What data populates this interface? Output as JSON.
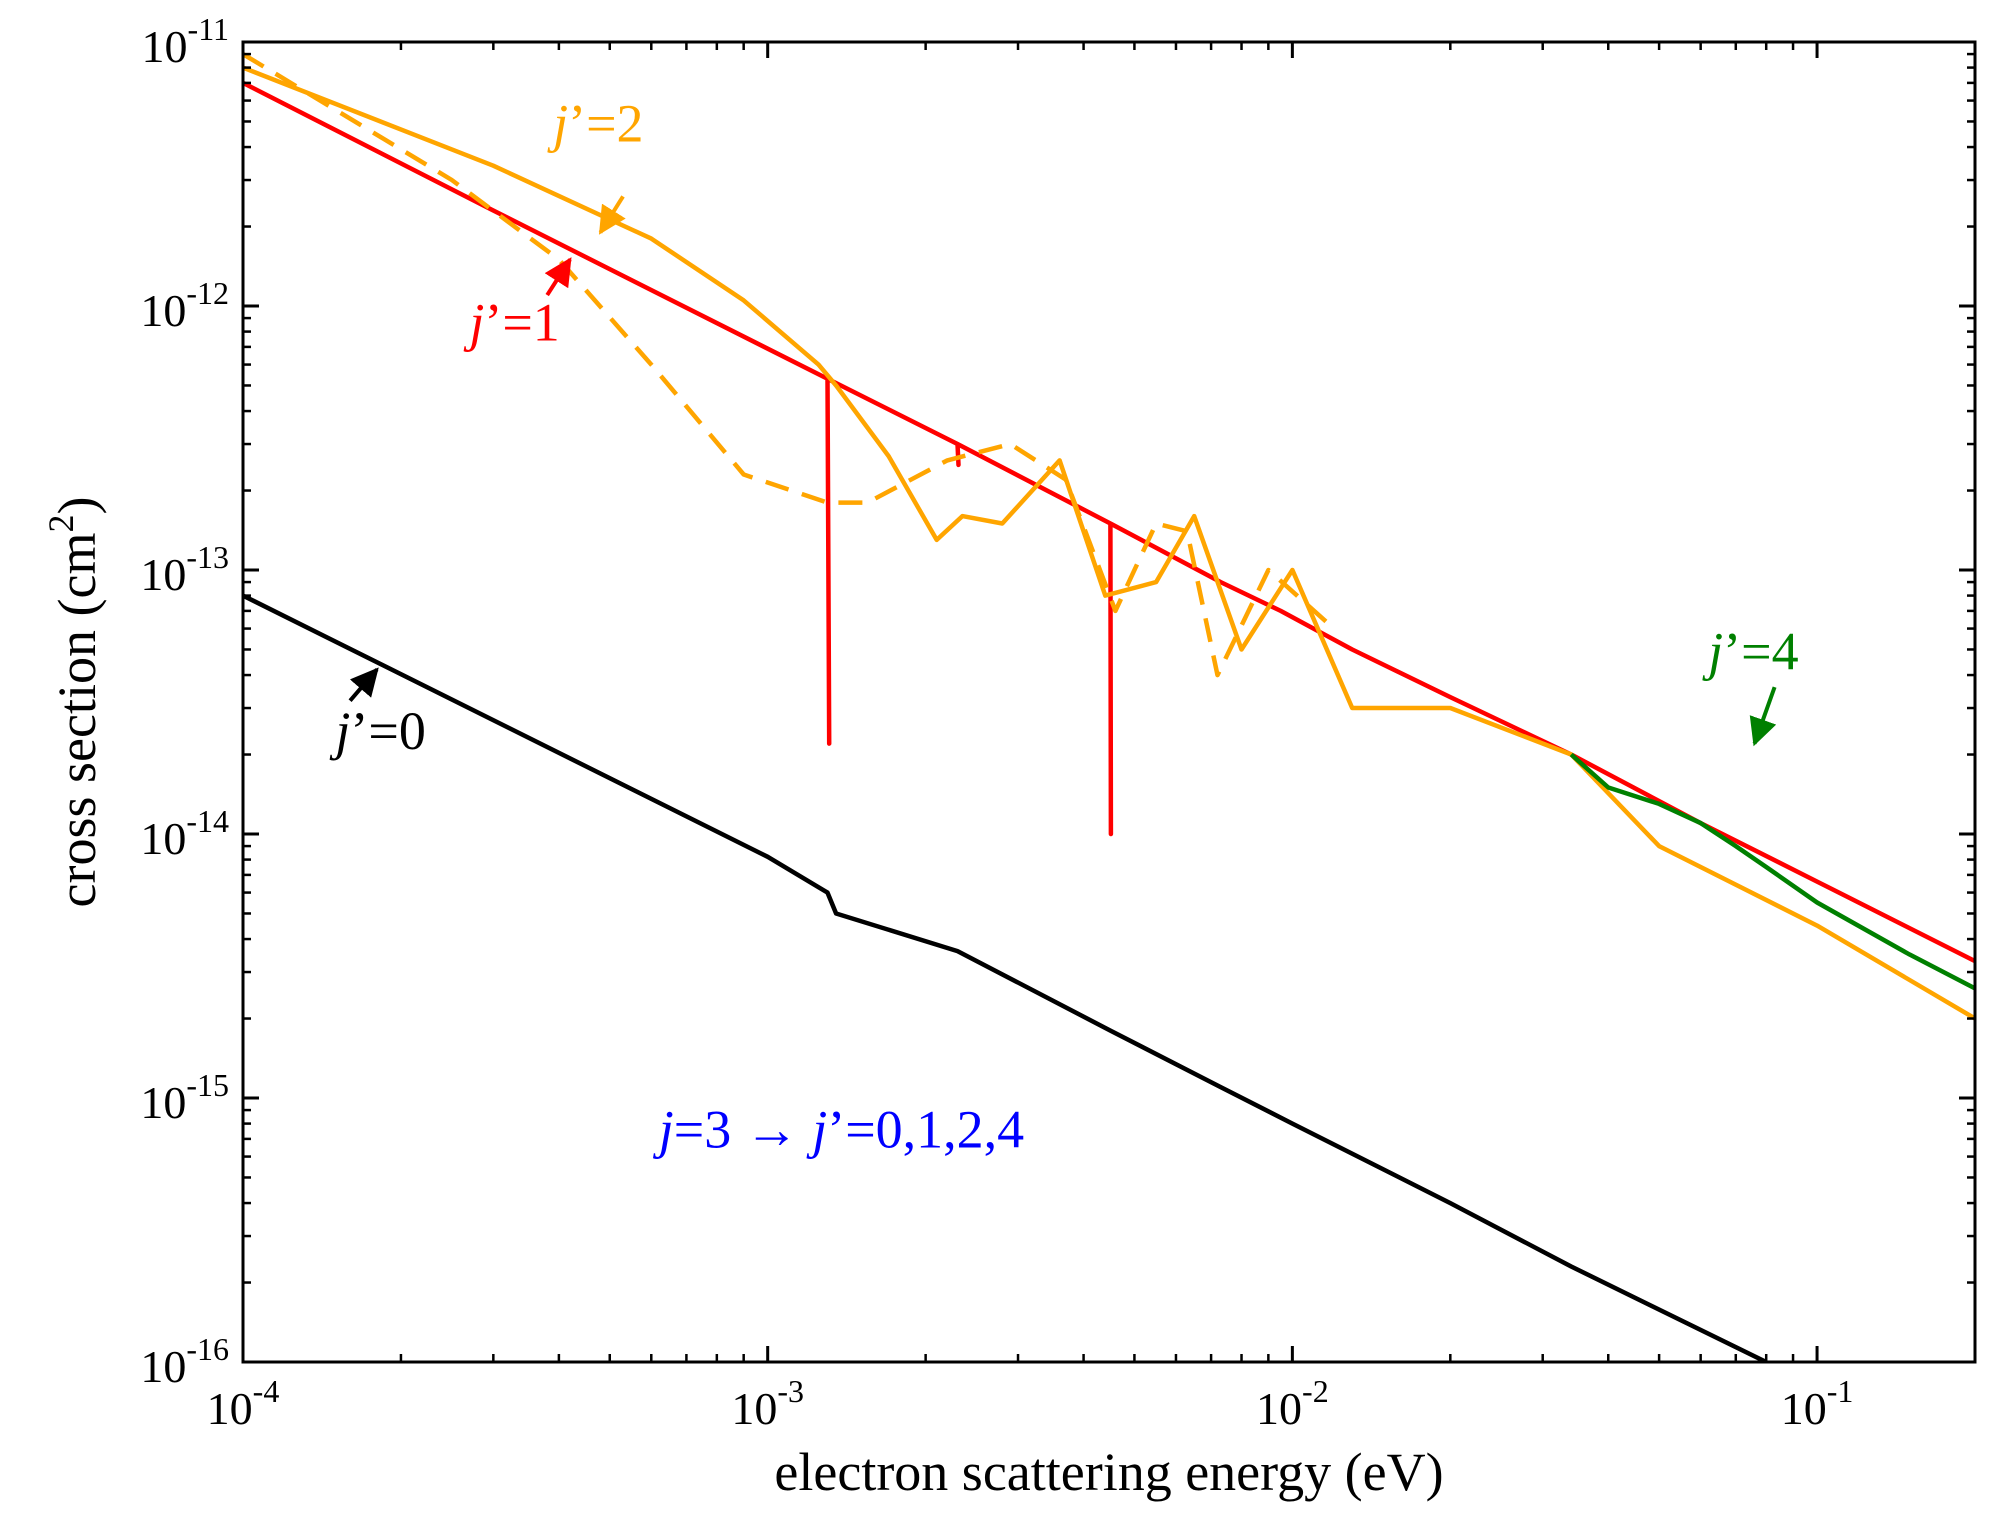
{
  "chart_data": {
    "type": "line",
    "title": "",
    "xlabel": "electron scattering energy (eV)",
    "ylabel_prefix": "cross section (cm",
    "ylabel_sup": "2",
    "ylabel_suffix": ")",
    "xscale": "log",
    "yscale": "log",
    "xlim": [
      0.0001,
      0.2
    ],
    "ylim": [
      1e-16,
      1e-11
    ],
    "x_ticks": [
      {
        "value": 0.0001,
        "base": "10",
        "exp": "-4"
      },
      {
        "value": 0.001,
        "base": "10",
        "exp": "-3"
      },
      {
        "value": 0.01,
        "base": "10",
        "exp": "-2"
      },
      {
        "value": 0.1,
        "base": "10",
        "exp": "-1"
      }
    ],
    "y_ticks": [
      {
        "value": 1e-16,
        "base": "10",
        "exp": "-16"
      },
      {
        "value": 1e-15,
        "base": "10",
        "exp": "-15"
      },
      {
        "value": 1e-14,
        "base": "10",
        "exp": "-14"
      },
      {
        "value": 1e-13,
        "base": "10",
        "exp": "-13"
      },
      {
        "value": 1e-12,
        "base": "10",
        "exp": "-12"
      },
      {
        "value": 1e-11,
        "base": "10",
        "exp": "-11"
      }
    ],
    "grid": false,
    "series": [
      {
        "name": "j'=1 (solid)",
        "color": "#ff0000",
        "dash": "solid",
        "x": [
          0.0001,
          0.0003,
          0.0013,
          0.00131,
          0.0013,
          0.0023,
          0.00231,
          0.0023,
          0.0045,
          0.00451,
          0.0045,
          0.0073,
          0.0095,
          0.013,
          0.02,
          0.034,
          0.06,
          0.1,
          0.2
        ],
        "y": [
          7e-12,
          2.3e-12,
          5.3e-13,
          2.2e-14,
          5.3e-13,
          3e-13,
          2.5e-13,
          3e-13,
          1.5e-13,
          1e-14,
          1.5e-13,
          9e-14,
          7e-14,
          5e-14,
          3.3e-14,
          2e-14,
          1.1e-14,
          6.6e-15,
          3.3e-15
        ]
      },
      {
        "name": "j'=2 (solid)",
        "color": "#ffa500",
        "dash": "solid",
        "x": [
          0.0001,
          0.0003,
          0.0006,
          0.0009,
          0.00125,
          0.00135,
          0.0017,
          0.0021,
          0.00235,
          0.0028,
          0.0036,
          0.0044,
          0.0055,
          0.0065,
          0.008,
          0.01,
          0.013,
          0.02,
          0.034,
          0.05,
          0.1,
          0.2
        ],
        "y": [
          8e-12,
          3.4e-12,
          1.8e-12,
          1.05e-12,
          6e-13,
          5e-13,
          2.7e-13,
          1.3e-13,
          1.6e-13,
          1.5e-13,
          2.6e-13,
          8e-14,
          9e-14,
          1.6e-13,
          5e-14,
          1e-13,
          3e-14,
          3e-14,
          2e-14,
          9e-15,
          4.5e-15,
          2e-15
        ]
      },
      {
        "name": "j'=2 (dashed)",
        "color": "#ffa500",
        "dash": "dashed",
        "x": [
          0.0001,
          0.00025,
          0.0004,
          0.0006,
          0.0009,
          0.0013,
          0.00155,
          0.0022,
          0.0029,
          0.0037,
          0.0046,
          0.0055,
          0.0063,
          0.0072,
          0.009,
          0.012
        ],
        "y": [
          9e-12,
          3e-12,
          1.5e-12,
          6e-13,
          2.3e-13,
          1.8e-13,
          1.8e-13,
          2.6e-13,
          3e-13,
          2.2e-13,
          7e-14,
          1.5e-13,
          1.4e-13,
          4e-14,
          1e-13,
          6e-14
        ]
      },
      {
        "name": "j'=4",
        "color": "#008000",
        "dash": "solid",
        "x": [
          0.034,
          0.04,
          0.05,
          0.06,
          0.07,
          0.08,
          0.1,
          0.15,
          0.2
        ],
        "y": [
          2e-14,
          1.5e-14,
          1.3e-14,
          1.1e-14,
          9e-15,
          7.5e-15,
          5.5e-15,
          3.5e-15,
          2.6e-15
        ]
      },
      {
        "name": "j'=0",
        "color": "#000000",
        "dash": "solid",
        "x": [
          0.0001,
          0.001,
          0.0013,
          0.00135,
          0.0023,
          0.0045,
          0.0073,
          0.01,
          0.02,
          0.034,
          0.08
        ],
        "y": [
          8e-14,
          8.2e-15,
          6e-15,
          5e-15,
          3.6e-15,
          1.8e-15,
          1.1e-15,
          8e-16,
          4e-16,
          2.3e-16,
          1e-16
        ]
      }
    ],
    "annotations": [
      {
        "text_pre": "",
        "italic": "j",
        "text_post": "’=2",
        "color": "#ffa500",
        "label_at": [
          0.00039,
          4.2e-12
        ],
        "arrow_from": [
          0.00053,
          2.6e-12
        ],
        "arrow_to": [
          0.00048,
          1.9e-12
        ]
      },
      {
        "text_pre": "",
        "italic": "j",
        "text_post": "’=1",
        "color": "#ff0000",
        "label_at": [
          0.00027,
          7.4e-13
        ],
        "arrow_from": [
          0.00038,
          1.1e-12
        ],
        "arrow_to": [
          0.00042,
          1.5e-12
        ]
      },
      {
        "text_pre": "",
        "italic": "j",
        "text_post": "’=0",
        "color": "#000000",
        "label_at": [
          0.00015,
          2.1e-14
        ],
        "arrow_from": [
          0.00016,
          3.2e-14
        ],
        "arrow_to": [
          0.00018,
          4.2e-14
        ]
      },
      {
        "text_pre": "",
        "italic": "j",
        "text_post": "’=4",
        "color": "#008000",
        "label_at": [
          0.062,
          4.2e-14
        ],
        "arrow_from": [
          0.083,
          3.6e-14
        ],
        "arrow_to": [
          0.076,
          2.2e-14
        ]
      },
      {
        "text_pre": "",
        "italic": "j",
        "text_post": "=3 → ",
        "italic2": "j",
        "text_post2": "’=0,1,2,4",
        "color": "#0000ff",
        "label_at": [
          0.00062,
          6.5e-16
        ]
      }
    ]
  }
}
